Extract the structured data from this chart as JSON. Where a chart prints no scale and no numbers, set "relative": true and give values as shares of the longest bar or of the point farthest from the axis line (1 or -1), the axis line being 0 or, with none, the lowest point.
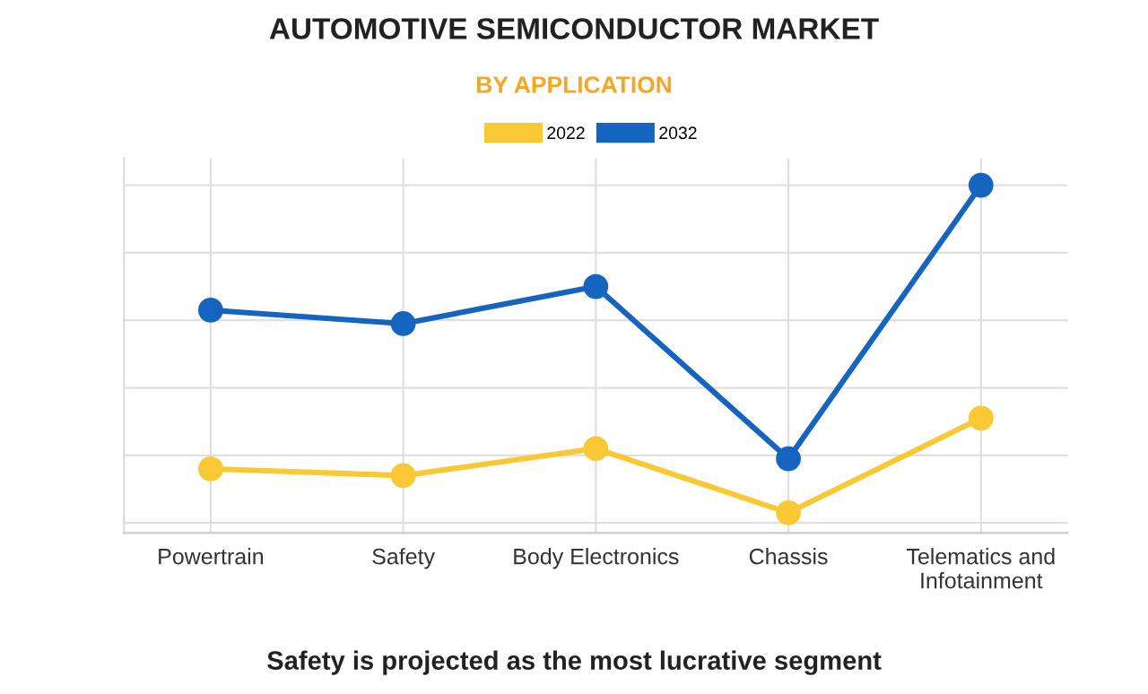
{
  "chart_data": {
    "type": "line",
    "title": "AUTOMOTIVE SEMICONDUCTOR MARKET",
    "subtitle": "BY APPLICATION",
    "categories": [
      "Powertrain",
      "Safety",
      "Body Electronics",
      "Chassis",
      "Telematics and\nInfotainment"
    ],
    "series": [
      {
        "name": "2022",
        "color": "#f9c935",
        "values": [
          0.16,
          0.14,
          0.22,
          0.03,
          0.31
        ]
      },
      {
        "name": "2032",
        "color": "#1565c0",
        "values": [
          0.63,
          0.59,
          0.7,
          0.19,
          1.0
        ]
      }
    ],
    "relative": true,
    "grid": true,
    "legend": "top",
    "marker": "circle",
    "annotations": [
      "Safety is projected as the most lucrative segment"
    ]
  }
}
